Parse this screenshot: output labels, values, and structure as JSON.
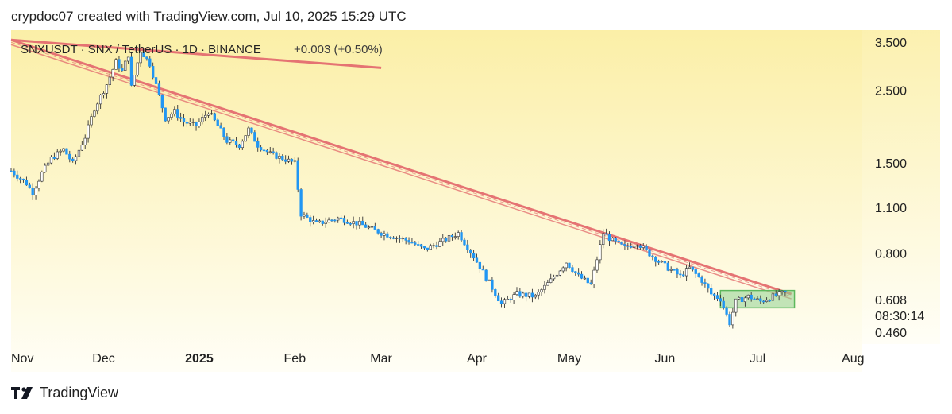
{
  "header": {
    "text": "crypdoc07 created with TradingView.com, Jul 10, 2025 15:29 UTC"
  },
  "footer": {
    "brand": "TradingView",
    "logo_icon": "tradingview-logo-icon"
  },
  "colors": {
    "background_top": "#fbefa7",
    "background_bottom": "#fffef6",
    "candle": "#2196f3",
    "wick": "#333333",
    "trendline": "#e57373",
    "range_box": "#8fd18f"
  },
  "chart_data": {
    "type": "candlestick",
    "symbol": "SNXUSDT",
    "legend": {
      "symbol": "SNXUSDT",
      "base": "SNX",
      "quote": "TetherUS",
      "interval": "1D",
      "exchange": "BINANCE",
      "change": "+0.003 (+0.50%)"
    },
    "y_scale": "log",
    "ylim": [
      0.43,
      3.8
    ],
    "y_ticks": [
      "3.500",
      "2.500",
      "1.500",
      "1.100",
      "0.800",
      "0.460"
    ],
    "x_ticks": [
      "Nov",
      "Dec",
      "2025",
      "Feb",
      "Mar",
      "Apr",
      "May",
      "Jun",
      "Jul",
      "Aug"
    ],
    "x_range": [
      "2024-11-01",
      "2025-08-04"
    ],
    "last_price": "0.608",
    "countdown": "08:30:14",
    "path": [
      [
        "2024-11-01",
        1.42
      ],
      [
        "2024-11-06",
        1.3
      ],
      [
        "2024-11-08",
        1.22
      ],
      [
        "2024-11-11",
        1.4
      ],
      [
        "2024-11-14",
        1.55
      ],
      [
        "2024-11-18",
        1.65
      ],
      [
        "2024-11-21",
        1.5
      ],
      [
        "2024-11-25",
        1.8
      ],
      [
        "2024-11-28",
        2.2
      ],
      [
        "2024-12-02",
        2.6
      ],
      [
        "2024-12-05",
        3.05
      ],
      [
        "2024-12-07",
        2.85
      ],
      [
        "2024-12-09",
        3.2
      ],
      [
        "2024-12-10",
        2.55
      ],
      [
        "2024-12-13",
        3.3
      ],
      [
        "2024-12-16",
        3.0
      ],
      [
        "2024-12-19",
        2.4
      ],
      [
        "2024-12-21",
        2.05
      ],
      [
        "2024-12-24",
        2.15
      ],
      [
        "2024-12-27",
        2.0
      ],
      [
        "2024-12-31",
        1.95
      ],
      [
        "2025-01-04",
        2.15
      ],
      [
        "2025-01-07",
        1.95
      ],
      [
        "2025-01-10",
        1.75
      ],
      [
        "2025-01-14",
        1.7
      ],
      [
        "2025-01-17",
        1.9
      ],
      [
        "2025-01-20",
        1.7
      ],
      [
        "2025-01-24",
        1.6
      ],
      [
        "2025-01-28",
        1.55
      ],
      [
        "2025-02-01",
        1.5
      ],
      [
        "2025-02-03",
        1.05
      ],
      [
        "2025-02-08",
        0.98
      ],
      [
        "2025-02-15",
        1.02
      ],
      [
        "2025-02-22",
        0.98
      ],
      [
        "2025-03-01",
        0.92
      ],
      [
        "2025-03-10",
        0.87
      ],
      [
        "2025-03-15",
        0.82
      ],
      [
        "2025-03-20",
        0.86
      ],
      [
        "2025-03-26",
        0.92
      ],
      [
        "2025-03-31",
        0.78
      ],
      [
        "2025-04-05",
        0.65
      ],
      [
        "2025-04-09",
        0.56
      ],
      [
        "2025-04-14",
        0.6
      ],
      [
        "2025-04-20",
        0.59
      ],
      [
        "2025-04-25",
        0.66
      ],
      [
        "2025-04-30",
        0.75
      ],
      [
        "2025-05-04",
        0.68
      ],
      [
        "2025-05-08",
        0.64
      ],
      [
        "2025-05-12",
        0.92
      ],
      [
        "2025-05-15",
        0.87
      ],
      [
        "2025-05-19",
        0.83
      ],
      [
        "2025-05-23",
        0.86
      ],
      [
        "2025-05-28",
        0.78
      ],
      [
        "2025-06-02",
        0.72
      ],
      [
        "2025-06-06",
        0.68
      ],
      [
        "2025-06-09",
        0.72
      ],
      [
        "2025-06-13",
        0.66
      ],
      [
        "2025-06-16",
        0.6
      ],
      [
        "2025-06-19",
        0.58
      ],
      [
        "2025-06-22",
        0.49
      ],
      [
        "2025-06-24",
        0.57
      ],
      [
        "2025-06-28",
        0.59
      ],
      [
        "2025-07-02",
        0.57
      ],
      [
        "2025-07-06",
        0.59
      ],
      [
        "2025-07-10",
        0.608
      ]
    ],
    "annotations": [
      {
        "type": "trendline",
        "label": "long-term descending trendline",
        "from": [
          "2024-11-01",
          3.55
        ],
        "to": [
          "2025-07-12",
          0.6
        ]
      },
      {
        "type": "trendline",
        "label": "short trendline top left",
        "from": [
          "2024-11-01",
          3.55
        ],
        "to": [
          "2025-03-01",
          2.92
        ]
      },
      {
        "type": "range_box",
        "label": "consolidation range",
        "from": [
          "2025-06-19",
          0.545
        ],
        "to": [
          "2025-07-13",
          0.615
        ]
      }
    ]
  }
}
